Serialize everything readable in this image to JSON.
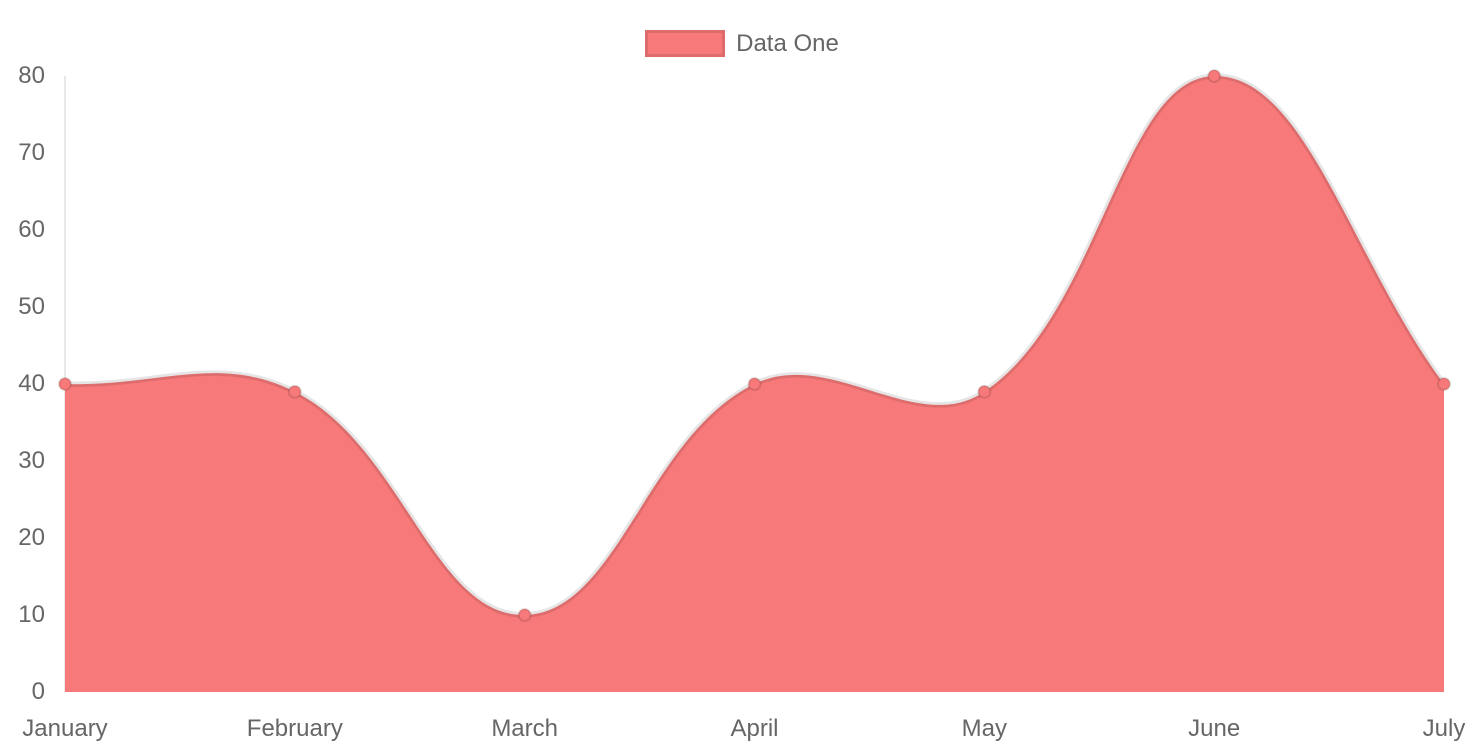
{
  "chart_data": {
    "type": "area",
    "title": "",
    "categories": [
      "January",
      "February",
      "March",
      "April",
      "May",
      "June",
      "July"
    ],
    "series": [
      {
        "name": "Data One",
        "values": [
          40,
          39,
          10,
          40,
          39,
          80,
          40
        ],
        "fill_color": "#f87979",
        "line_color": "rgba(0,0,0,0.10)",
        "point_fill_color": "#f87979",
        "point_border_color": "rgba(0,0,0,0.12)",
        "smooth": true,
        "tension": 0.4
      }
    ],
    "xlabel": "",
    "ylabel": "",
    "ylim": [
      0,
      80
    ],
    "yticks": [
      0,
      10,
      20,
      30,
      40,
      50,
      60,
      70,
      80
    ],
    "grid": false,
    "y_axis_line": true,
    "x_axis_line": false,
    "legend_position": "top-center",
    "tick_label_color": "#666666",
    "axis_line_color": "rgba(0,0,0,0.09)"
  },
  "legend": {
    "items": [
      {
        "label": "Data One",
        "swatch_color": "#f87979"
      }
    ]
  }
}
